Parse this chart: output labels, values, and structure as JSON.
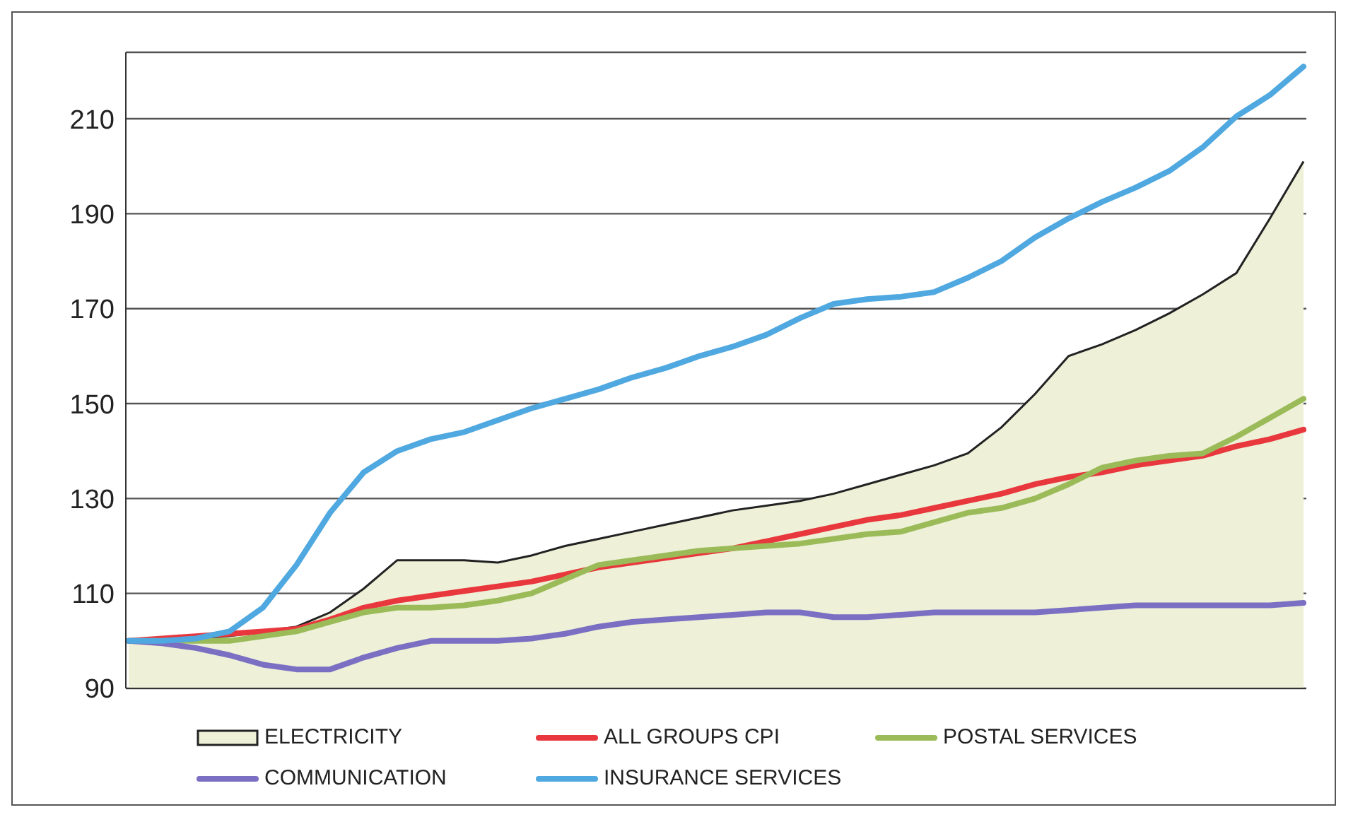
{
  "chart_data": {
    "type": "line",
    "categories": [
      null,
      null,
      null,
      null,
      null,
      null,
      null,
      null,
      null,
      null,
      null,
      null,
      null,
      null,
      null,
      null,
      null,
      null,
      null,
      null,
      null,
      null,
      null,
      null,
      null,
      null,
      null,
      null,
      null,
      null,
      null,
      null,
      null,
      null,
      null,
      null
    ],
    "series": [
      {
        "name": "ELECTRICITY",
        "type": "area",
        "color": "#eef0d8",
        "values": [
          100,
          100,
          100.5,
          101,
          102,
          103,
          106,
          111,
          117,
          117,
          117,
          116.5,
          118,
          120,
          121.5,
          123,
          124.5,
          126,
          127.5,
          128.5,
          129.5,
          131,
          133,
          135,
          137,
          139.5,
          145,
          152,
          160,
          162.5,
          165.5,
          169,
          173,
          177.5,
          189,
          201
        ]
      },
      {
        "name": "ALL GROUPS CPI",
        "color": "#e8383d",
        "values": [
          100,
          100.5,
          101,
          101.5,
          102,
          102.5,
          104.5,
          107,
          108.5,
          109.5,
          110.5,
          111.5,
          112.5,
          114,
          115.5,
          116.5,
          117.5,
          118.5,
          119.5,
          121,
          122.5,
          124,
          125.5,
          126.5,
          128,
          129.5,
          131,
          133,
          134.5,
          135.5,
          137,
          138,
          139,
          141,
          142.5,
          144.5
        ]
      },
      {
        "name": "POSTAL SERVICES",
        "color": "#9bbb59",
        "values": [
          100,
          100,
          100,
          100,
          101,
          102,
          104,
          106,
          107,
          107,
          107.5,
          108.5,
          110,
          113,
          116,
          117,
          118,
          119,
          119.5,
          120,
          120.5,
          121.5,
          122.5,
          123,
          125,
          127,
          128,
          130,
          133,
          136.5,
          138,
          139,
          139.5,
          143,
          147,
          151
        ]
      },
      {
        "name": "COMMUNICATION",
        "color": "#7a6fc2",
        "values": [
          100,
          99.5,
          98.5,
          97,
          95,
          94,
          94,
          96.5,
          98.5,
          100,
          100,
          100,
          100.5,
          101.5,
          103,
          104,
          104.5,
          105,
          105.5,
          106,
          106,
          105,
          105,
          105.5,
          106,
          106,
          106,
          106,
          106.5,
          107,
          107.5,
          107.5,
          107.5,
          107.5,
          107.5,
          108
        ]
      },
      {
        "name": "INSURANCE SERVICES",
        "color": "#4fa8e0",
        "values": [
          100,
          100,
          100.5,
          102,
          107,
          116,
          127,
          135.5,
          140,
          142.5,
          144,
          146.5,
          149,
          151,
          153,
          155.5,
          157.5,
          160,
          162,
          164.5,
          168,
          171,
          172,
          172.5,
          173.5,
          176.5,
          180,
          185,
          189,
          192.5,
          195.5,
          199,
          204,
          210.5,
          215,
          221
        ]
      }
    ],
    "ylim": [
      90,
      224
    ],
    "yticks": [
      90,
      110,
      130,
      150,
      170,
      190,
      210
    ],
    "grid": "y",
    "legend": "bottom",
    "tick_labels": "y",
    "line_style": "solid",
    "marker": "none"
  }
}
